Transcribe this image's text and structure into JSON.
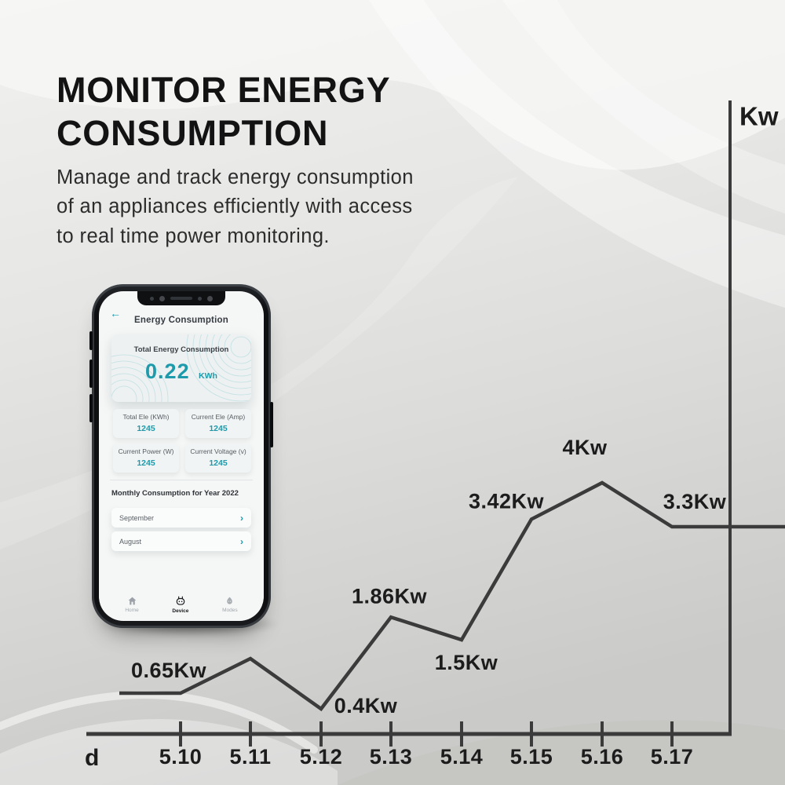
{
  "page": {
    "title_line1": "MONITOR ENERGY",
    "title_line2": "CONSUMPTION",
    "description_lines": [
      "Manage and track energy consumption",
      "of an appliances efficiently with access",
      "to real time power monitoring."
    ]
  },
  "colors": {
    "accent_teal": "#1d9aab",
    "chart_ink": "#3b3b3b",
    "heading_ink": "#131313"
  },
  "phone_app": {
    "back_icon": "←",
    "header_title": "Energy Consumption",
    "summary_card": {
      "title": "Total Energy Consumption",
      "value": "0.22",
      "unit": "KWh"
    },
    "stats": [
      {
        "label": "Total Ele (KWh)",
        "value": "1245"
      },
      {
        "label": "Current Ele (Amp)",
        "value": "1245"
      },
      {
        "label": "Current Power (W)",
        "value": "1245"
      },
      {
        "label": "Current Voltage (v)",
        "value": "1245"
      }
    ],
    "monthly_section_title": "Monthly Consumption for Year 2022",
    "monthly_items": [
      {
        "label": "September"
      },
      {
        "label": "August"
      }
    ],
    "chevron": "›",
    "bottom_nav": [
      {
        "label": "Home",
        "icon": "home-icon",
        "active": false
      },
      {
        "label": "Device",
        "icon": "device-icon",
        "active": true
      },
      {
        "label": "Modes",
        "icon": "modes-icon",
        "active": false
      }
    ]
  },
  "chart_data": {
    "type": "line",
    "title": "",
    "x_axis_label": "d",
    "y_axis_label": "Kw",
    "categories": [
      "5.10",
      "5.11",
      "5.12",
      "5.13",
      "5.14",
      "5.15",
      "5.16",
      "5.17"
    ],
    "values": [
      0.65,
      1.2,
      0.4,
      1.86,
      1.5,
      3.42,
      4.0,
      3.3
    ],
    "point_labels": [
      "0.65Kw",
      "",
      "0.4Kw",
      "1.86Kw",
      "1.5Kw",
      "3.42Kw",
      "4Kw",
      "3.3Kw"
    ],
    "ylim": [
      0,
      10
    ],
    "grid": false,
    "legend": "none",
    "y_axis_side": "right",
    "line_extends_flat_left_of_first_point": true,
    "line_extends_flat_right_past_axis": true
  }
}
